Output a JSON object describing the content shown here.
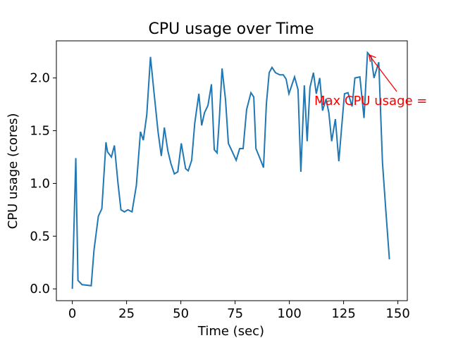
{
  "chart_data": {
    "type": "line",
    "title": "CPU usage over Time",
    "x_label": "Time (sec)",
    "y_label": "CPU usage (cores)",
    "color": "#1f77b4",
    "x": [
      0,
      1.6,
      2.6,
      4.5,
      8.7,
      10,
      12,
      13.6,
      15.5,
      16.2,
      18,
      19.4,
      21,
      22.4,
      24,
      25.6,
      27.5,
      29.5,
      31.4,
      32.7,
      34.3,
      36,
      37.6,
      39.5,
      41,
      42.4,
      44,
      45.4,
      47,
      48.6,
      50.2,
      52.2,
      53.4,
      55,
      56.4,
      58.3,
      59.6,
      60.9,
      62.5,
      64.1,
      65.4,
      66.7,
      67.7,
      69,
      70.6,
      71.9,
      73.5,
      75.5,
      77.1,
      78.7,
      80.3,
      82.3,
      83.6,
      84.6,
      86.2,
      88.1,
      89.4,
      90.7,
      92,
      93.6,
      95.6,
      97.2,
      98.5,
      99.8,
      102.4,
      104,
      105.3,
      106.9,
      108.2,
      109.5,
      111.1,
      112.4,
      114,
      115.3,
      116.9,
      118.2,
      119.5,
      121.2,
      122.8,
      124,
      125.4,
      127,
      128.9,
      130.2,
      132.5,
      134.4,
      136,
      137.7,
      139,
      141.2,
      142.9,
      144.5,
      146.1
    ],
    "values": [
      0,
      1.24,
      0.08,
      0.04,
      0.03,
      0.37,
      0.69,
      0.76,
      1.39,
      1.3,
      1.25,
      1.36,
      1.01,
      0.75,
      0.73,
      0.75,
      0.73,
      0.98,
      1.49,
      1.41,
      1.65,
      2.2,
      1.87,
      1.49,
      1.26,
      1.53,
      1.31,
      1.19,
      1.09,
      1.11,
      1.38,
      1.14,
      1.12,
      1.22,
      1.57,
      1.85,
      1.55,
      1.67,
      1.74,
      1.94,
      1.32,
      1.29,
      1.6,
      2.09,
      1.79,
      1.38,
      1.31,
      1.22,
      1.33,
      1.33,
      1.7,
      1.86,
      1.82,
      1.33,
      1.25,
      1.15,
      1.75,
      2.05,
      2.1,
      2.05,
      2.03,
      2.03,
      1.99,
      1.85,
      2.01,
      1.89,
      1.11,
      1.93,
      1.4,
      1.91,
      2.05,
      1.85,
      2.0,
      1.69,
      1.8,
      1.67,
      1.4,
      1.61,
      1.21,
      1.51,
      1.85,
      1.86,
      1.73,
      2.0,
      2.01,
      1.62,
      2.24,
      2.2,
      2.0,
      2.15,
      1.2,
      0.73,
      0.28
    ],
    "xlim": [
      -7.35,
      154.35
    ],
    "ylim": [
      -0.112,
      2.352
    ],
    "xticks": [
      0,
      25,
      50,
      75,
      100,
      125,
      150
    ],
    "yticks": [
      {
        "value": 0,
        "label": "0.0"
      },
      {
        "value": 0.5,
        "label": "0.5"
      },
      {
        "value": 1,
        "label": "1.0"
      },
      {
        "value": 1.5,
        "label": "1.5"
      },
      {
        "value": 2,
        "label": "2.0"
      }
    ],
    "annotation": {
      "text": "Max CPU usage =",
      "x": 136,
      "y": 2.24,
      "color": "#ff0000"
    }
  }
}
